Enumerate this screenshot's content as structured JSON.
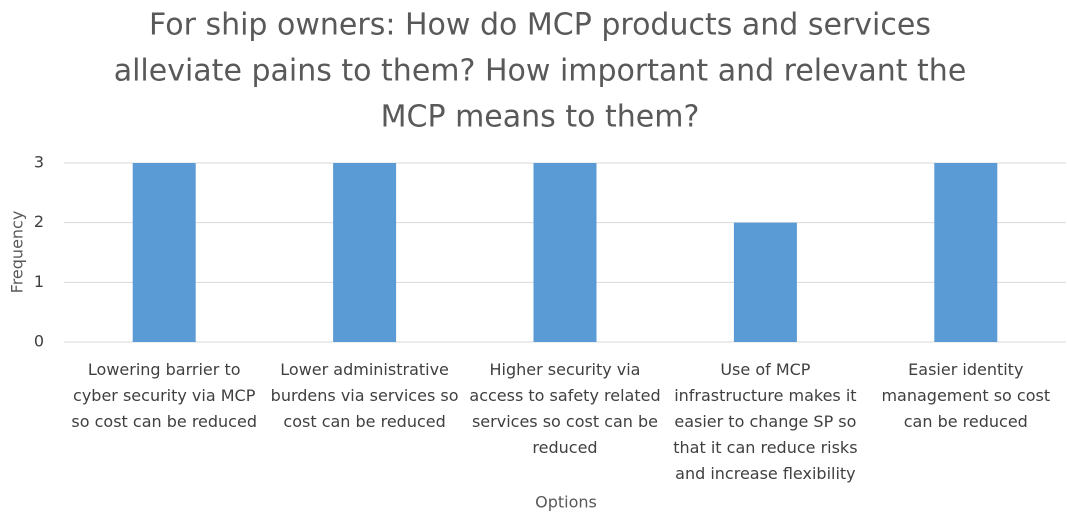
{
  "chart_data": {
    "type": "bar",
    "title": [
      "For ship owners: How do MCP products and services",
      "alleviate pains to them? How important and relevant the",
      "MCP means to them?"
    ],
    "x_label": "Options",
    "y_label": "Frequency",
    "categories": [
      "Lowering barrier to cyber security via MCP so cost can be reduced",
      "Lower administrative burdens via services so cost can be reduced",
      "Higher security via access to safety related services  so cost can be reduced",
      "Use of MCP infrastructure makes it easier to change SP so that it can reduce risks and increase flexibility",
      "Easier identity management so cost can be reduced"
    ],
    "values": [
      3,
      3,
      3,
      2,
      3
    ],
    "color": "#5b9bd5",
    "ylim": [
      0,
      3
    ],
    "yticks": [
      0,
      1,
      2,
      3
    ],
    "grid": true
  }
}
